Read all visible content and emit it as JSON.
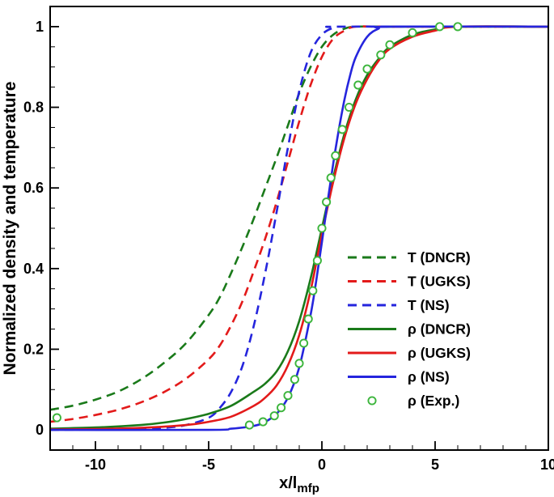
{
  "figure": {
    "background": "#ffffff",
    "frame_color": "#000000",
    "text_color": "#000000"
  },
  "chart_data": {
    "type": "line",
    "title": "",
    "xlabel": "x/l",
    "xlabel_subscript": "mfp",
    "ylabel": "Normalized density and temperature",
    "xlim": [
      -12,
      10
    ],
    "ylim": [
      -0.05,
      1.05
    ],
    "x_major_ticks": [
      -10,
      -5,
      0,
      5,
      10
    ],
    "x_major_tick_labels": [
      "-10",
      "-5",
      "0",
      "5",
      "10"
    ],
    "x_minor_tick_step": 1,
    "y_major_ticks": [
      0,
      0.2,
      0.4,
      0.6,
      0.8,
      1
    ],
    "y_major_tick_labels": [
      "0",
      "0.2",
      "0.4",
      "0.6",
      "0.8",
      "1"
    ],
    "y_minor_tick_step": 0.05,
    "grid": false,
    "legend_position": "inside-right",
    "series": [
      {
        "name": "T (DNCR)",
        "color": "#1a7a1a",
        "style": "dashed",
        "points": [
          [
            -12,
            0.05
          ],
          [
            -11,
            0.06
          ],
          [
            -10,
            0.075
          ],
          [
            -9,
            0.095
          ],
          [
            -8,
            0.125
          ],
          [
            -7,
            0.165
          ],
          [
            -6,
            0.215
          ],
          [
            -5,
            0.285
          ],
          [
            -4.5,
            0.33
          ],
          [
            -4,
            0.39
          ],
          [
            -3.5,
            0.455
          ],
          [
            -3,
            0.525
          ],
          [
            -2.5,
            0.6
          ],
          [
            -2,
            0.675
          ],
          [
            -1.5,
            0.755
          ],
          [
            -1,
            0.835
          ],
          [
            -0.5,
            0.9
          ],
          [
            0,
            0.95
          ],
          [
            0.5,
            0.98
          ],
          [
            1,
            0.995
          ],
          [
            1.5,
            1.0
          ],
          [
            3,
            1.0
          ],
          [
            10,
            1.0
          ]
        ]
      },
      {
        "name": "T (UGKS)",
        "color": "#e31a1a",
        "style": "dashed",
        "points": [
          [
            -12,
            0.02
          ],
          [
            -11,
            0.027
          ],
          [
            -10,
            0.037
          ],
          [
            -9,
            0.05
          ],
          [
            -8,
            0.068
          ],
          [
            -7,
            0.093
          ],
          [
            -6,
            0.127
          ],
          [
            -5,
            0.175
          ],
          [
            -4.5,
            0.21
          ],
          [
            -4,
            0.26
          ],
          [
            -3.5,
            0.32
          ],
          [
            -3,
            0.395
          ],
          [
            -2.5,
            0.475
          ],
          [
            -2,
            0.565
          ],
          [
            -1.5,
            0.665
          ],
          [
            -1,
            0.765
          ],
          [
            -0.5,
            0.855
          ],
          [
            0,
            0.925
          ],
          [
            0.5,
            0.97
          ],
          [
            1,
            0.99
          ],
          [
            1.5,
            1.0
          ],
          [
            3,
            1.0
          ],
          [
            10,
            1.0
          ]
        ]
      },
      {
        "name": "T (NS)",
        "color": "#2525dd",
        "style": "dashed",
        "points": [
          [
            -12,
            0.0
          ],
          [
            -8,
            0.002
          ],
          [
            -7,
            0.005
          ],
          [
            -6,
            0.012
          ],
          [
            -5,
            0.03
          ],
          [
            -4.5,
            0.055
          ],
          [
            -4,
            0.095
          ],
          [
            -3.5,
            0.16
          ],
          [
            -3,
            0.26
          ],
          [
            -2.5,
            0.39
          ],
          [
            -2,
            0.54
          ],
          [
            -1.5,
            0.7
          ],
          [
            -1,
            0.84
          ],
          [
            -0.5,
            0.935
          ],
          [
            0,
            0.98
          ],
          [
            0.5,
            0.997
          ],
          [
            1,
            1.0
          ],
          [
            10,
            1.0
          ]
        ]
      },
      {
        "name": "ρ (DNCR)",
        "color": "#1a7a1a",
        "style": "solid",
        "points": [
          [
            -12,
            0.003
          ],
          [
            -10,
            0.006
          ],
          [
            -8,
            0.012
          ],
          [
            -7,
            0.018
          ],
          [
            -6,
            0.027
          ],
          [
            -5,
            0.04
          ],
          [
            -4,
            0.06
          ],
          [
            -3,
            0.095
          ],
          [
            -2.5,
            0.115
          ],
          [
            -2,
            0.145
          ],
          [
            -1.5,
            0.195
          ],
          [
            -1,
            0.27
          ],
          [
            -0.5,
            0.375
          ],
          [
            0,
            0.5
          ],
          [
            0.5,
            0.625
          ],
          [
            1,
            0.735
          ],
          [
            1.5,
            0.82
          ],
          [
            2,
            0.88
          ],
          [
            2.5,
            0.92
          ],
          [
            3,
            0.95
          ],
          [
            4,
            0.98
          ],
          [
            5,
            0.993
          ],
          [
            6,
            1.0
          ],
          [
            10,
            1.0
          ]
        ]
      },
      {
        "name": "ρ (UGKS)",
        "color": "#e31a1a",
        "style": "solid",
        "points": [
          [
            -12,
            0.001
          ],
          [
            -10,
            0.002
          ],
          [
            -8,
            0.005
          ],
          [
            -6,
            0.012
          ],
          [
            -5,
            0.02
          ],
          [
            -4,
            0.033
          ],
          [
            -3,
            0.06
          ],
          [
            -2.5,
            0.08
          ],
          [
            -2,
            0.11
          ],
          [
            -1.5,
            0.16
          ],
          [
            -1,
            0.235
          ],
          [
            -0.5,
            0.345
          ],
          [
            0,
            0.485
          ],
          [
            0.5,
            0.615
          ],
          [
            1,
            0.725
          ],
          [
            1.5,
            0.81
          ],
          [
            2,
            0.87
          ],
          [
            2.5,
            0.915
          ],
          [
            3,
            0.945
          ],
          [
            4,
            0.975
          ],
          [
            5,
            0.99
          ],
          [
            6,
            1.0
          ],
          [
            10,
            1.0
          ]
        ]
      },
      {
        "name": "ρ (NS)",
        "color": "#2525dd",
        "style": "solid",
        "points": [
          [
            -12,
            0.0
          ],
          [
            -5,
            0.0
          ],
          [
            -4,
            0.003
          ],
          [
            -3,
            0.01
          ],
          [
            -2.5,
            0.02
          ],
          [
            -2,
            0.04
          ],
          [
            -1.5,
            0.08
          ],
          [
            -1,
            0.155
          ],
          [
            -0.5,
            0.285
          ],
          [
            -0.25,
            0.37
          ],
          [
            0,
            0.465
          ],
          [
            0.25,
            0.565
          ],
          [
            0.5,
            0.66
          ],
          [
            0.75,
            0.745
          ],
          [
            1,
            0.82
          ],
          [
            1.25,
            0.88
          ],
          [
            1.5,
            0.925
          ],
          [
            2,
            0.975
          ],
          [
            2.5,
            0.995
          ],
          [
            3,
            1.0
          ],
          [
            10,
            1.0
          ]
        ]
      },
      {
        "name": "ρ (Exp.)",
        "color": "#3cb53c",
        "style": "scatter",
        "points": [
          [
            -11.7,
            0.03
          ],
          [
            -3.2,
            0.012
          ],
          [
            -2.6,
            0.02
          ],
          [
            -2.1,
            0.035
          ],
          [
            -1.8,
            0.055
          ],
          [
            -1.5,
            0.085
          ],
          [
            -1.2,
            0.125
          ],
          [
            -1.0,
            0.165
          ],
          [
            -0.8,
            0.215
          ],
          [
            -0.6,
            0.275
          ],
          [
            -0.4,
            0.345
          ],
          [
            -0.2,
            0.42
          ],
          [
            0,
            0.5
          ],
          [
            0.2,
            0.565
          ],
          [
            0.4,
            0.625
          ],
          [
            0.6,
            0.68
          ],
          [
            0.9,
            0.745
          ],
          [
            1.2,
            0.8
          ],
          [
            1.6,
            0.855
          ],
          [
            2.0,
            0.895
          ],
          [
            2.6,
            0.93
          ],
          [
            3.0,
            0.955
          ],
          [
            4.0,
            0.985
          ],
          [
            5.2,
            1.0
          ],
          [
            6.0,
            1.0
          ]
        ]
      }
    ]
  }
}
